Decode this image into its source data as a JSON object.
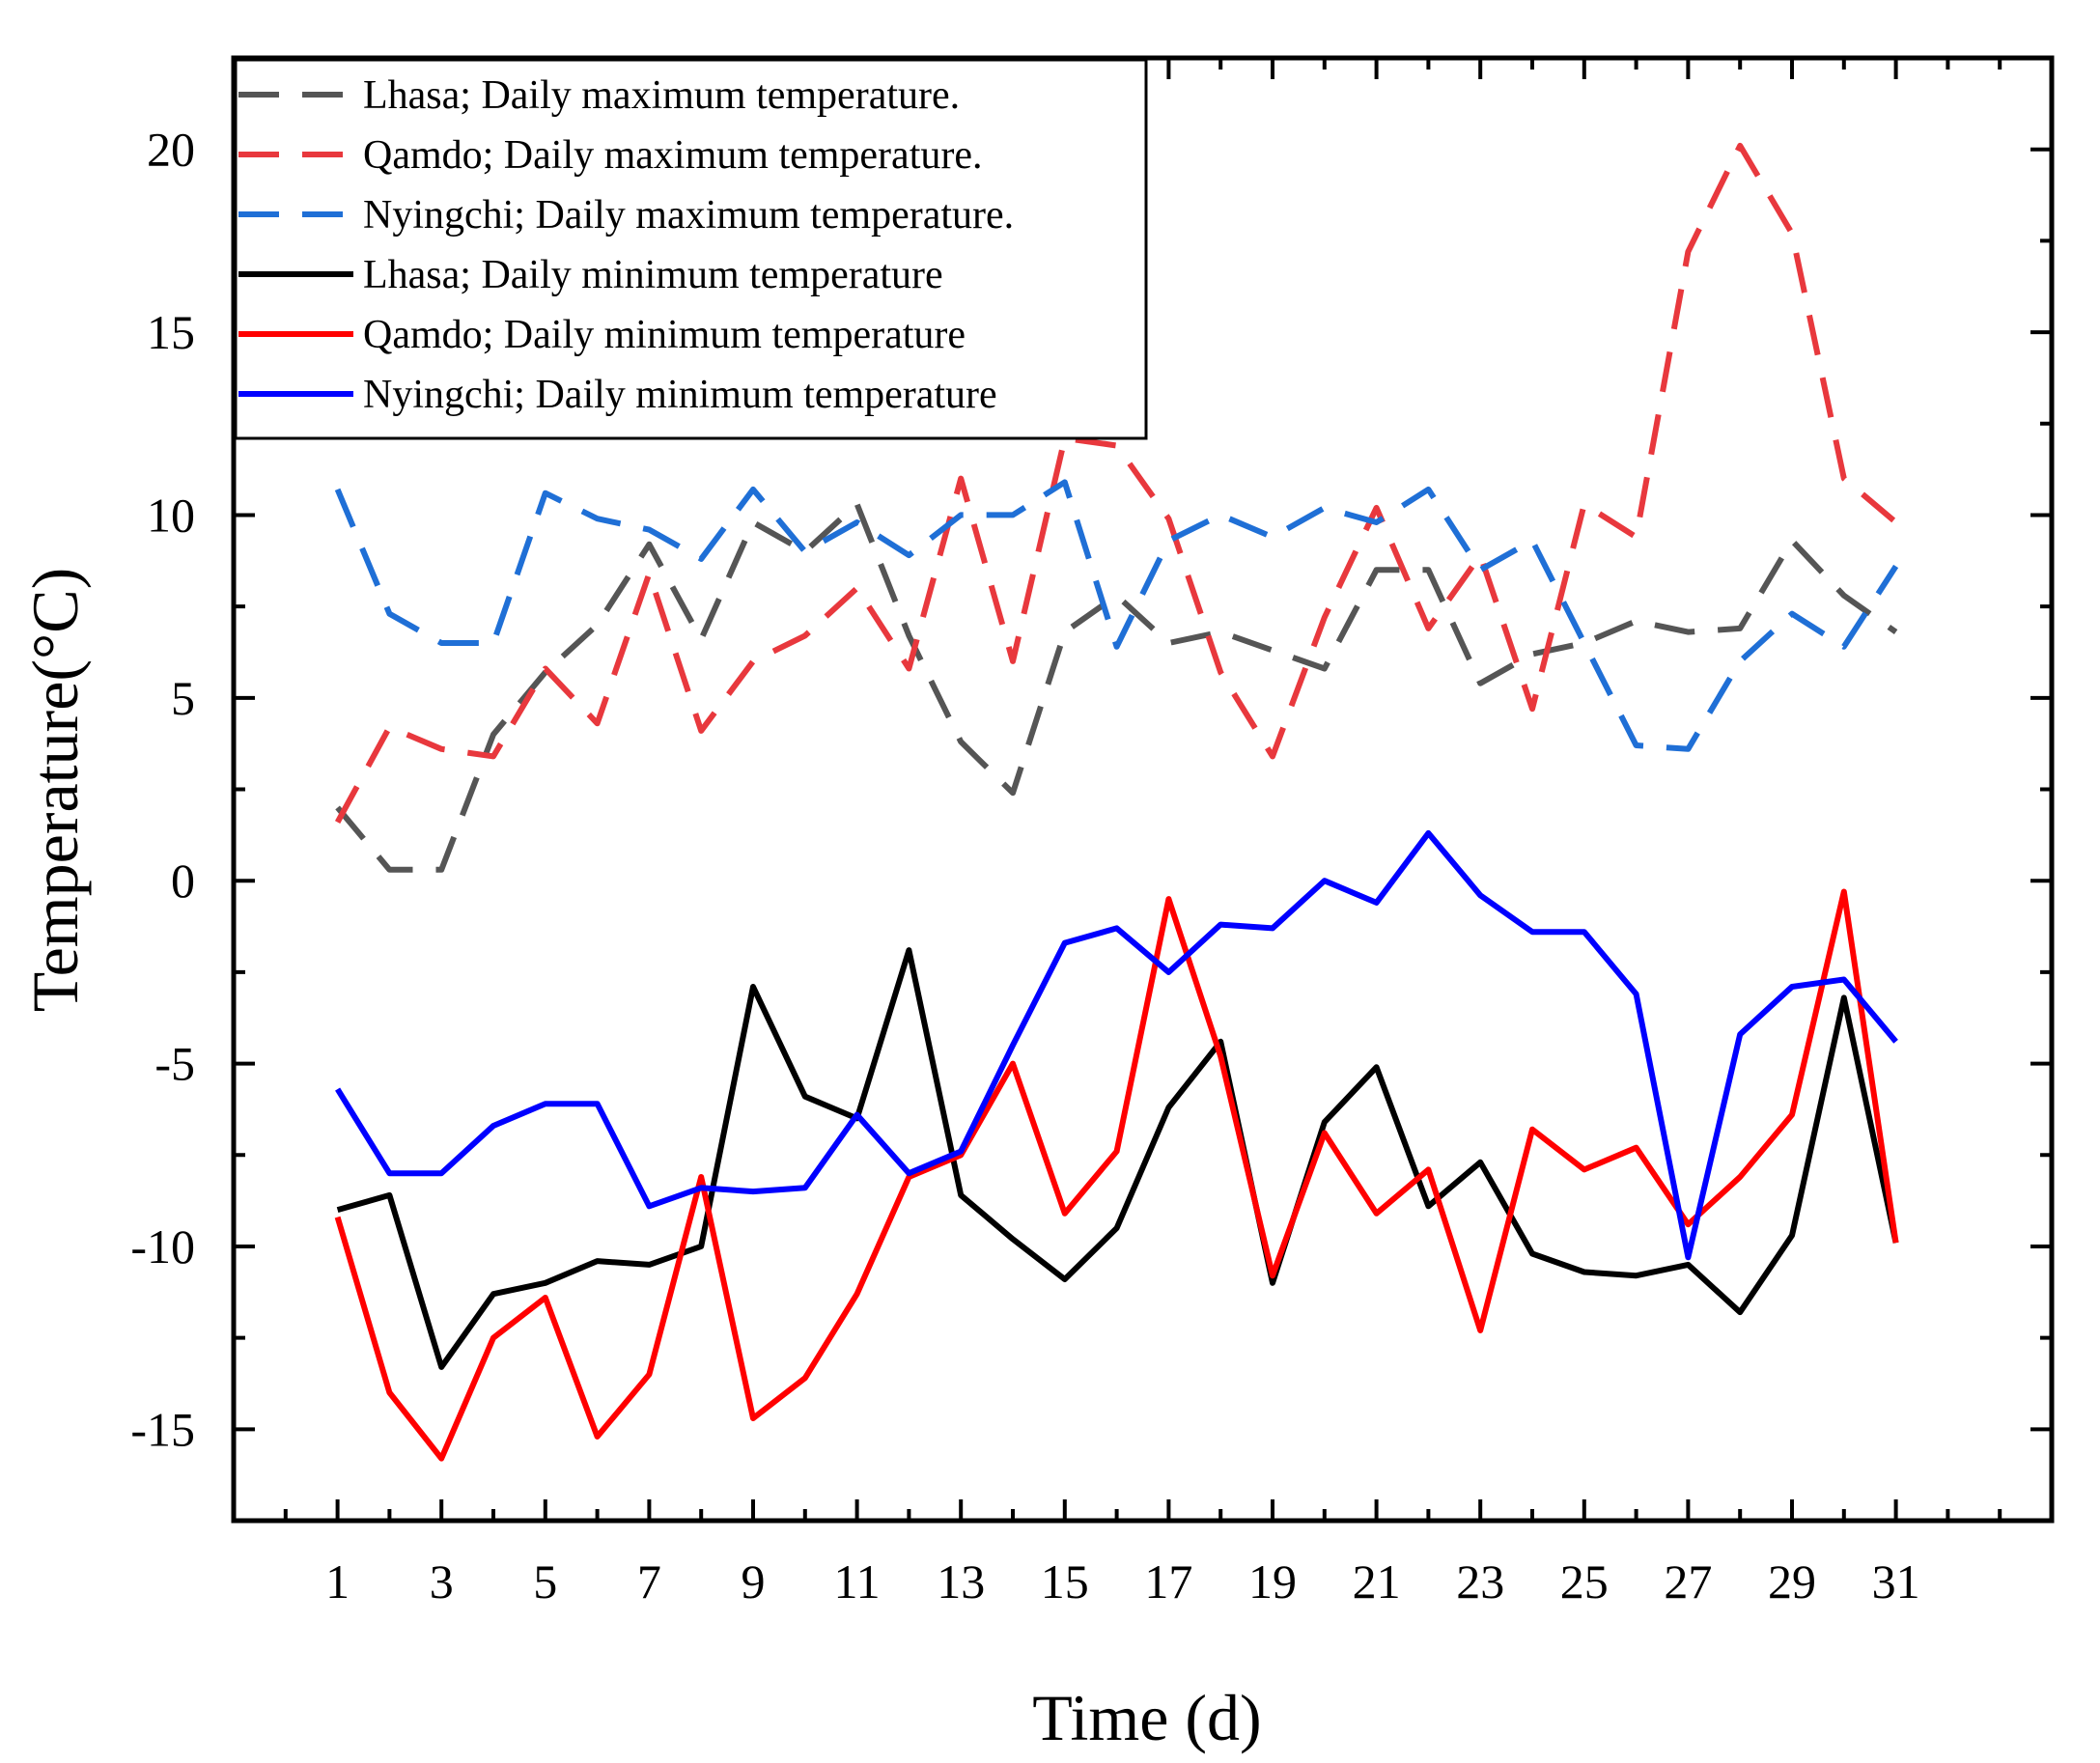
{
  "chart_data": {
    "type": "line",
    "title": "",
    "xlabel": "Time (d)",
    "ylabel": "Temperature(°C)",
    "xlim": [
      -1,
      34
    ],
    "ylim": [
      -17.5,
      22.5
    ],
    "xticks": [
      1,
      3,
      5,
      7,
      9,
      11,
      13,
      15,
      17,
      19,
      21,
      23,
      25,
      27,
      29,
      31
    ],
    "xticks_minor": [
      0,
      2,
      4,
      6,
      8,
      10,
      12,
      14,
      16,
      18,
      20,
      22,
      24,
      26,
      28,
      30,
      32,
      33
    ],
    "yticks": [
      20,
      15,
      10,
      5,
      0,
      -5,
      -10,
      -15
    ],
    "yticks_minor": [
      -17.5,
      -12.5,
      -7.5,
      -2.5,
      2.5,
      7.5,
      12.5,
      17.5,
      22.5
    ],
    "ytick_labels": [
      "20",
      "15",
      "10",
      "5",
      "0",
      "-5",
      "-10",
      "-15"
    ],
    "grid": false,
    "legend_position": "top-left",
    "x": [
      1,
      2,
      3,
      4,
      5,
      6,
      7,
      8,
      9,
      10,
      11,
      12,
      13,
      14,
      15,
      16,
      17,
      18,
      19,
      20,
      21,
      22,
      23,
      24,
      25,
      26,
      27,
      28,
      29,
      30,
      31
    ],
    "series": [
      {
        "name": "Lhasa; Daily maximum temperature.",
        "color": "#555555",
        "dash": true,
        "values": [
          2,
          0.3,
          0.3,
          4,
          5.7,
          7,
          9.2,
          6.6,
          9.8,
          9,
          10.3,
          6.7,
          3.8,
          2.4,
          6.8,
          7.8,
          6.5,
          6.8,
          6.3,
          5.8,
          8.5,
          8.5,
          5.4,
          6.2,
          6.5,
          7.1,
          6.8,
          6.9,
          9.3,
          7.8,
          6.8
        ]
      },
      {
        "name": "Qamdo; Daily maximum temperature.",
        "color": "#e8383d",
        "dash": true,
        "values": [
          1.6,
          4.2,
          3.6,
          3.4,
          5.8,
          4.3,
          8.4,
          4.1,
          6,
          6.7,
          8,
          5.8,
          11,
          6,
          12.1,
          11.9,
          9.9,
          5.7,
          3.4,
          7.2,
          10.2,
          6.9,
          8.9,
          4.7,
          10.3,
          9.4,
          17.2,
          20.1,
          17.7,
          11,
          9.8
        ]
      },
      {
        "name": "Nyingchi; Daily maximum temperature.",
        "color": "#1f6fd6",
        "dash": true,
        "values": [
          10.7,
          7.3,
          6.5,
          6.5,
          10.6,
          9.9,
          9.6,
          8.8,
          10.7,
          9,
          9.8,
          8.9,
          10,
          10,
          10.9,
          6.4,
          9.3,
          10,
          9.4,
          10.2,
          9.8,
          10.7,
          8.5,
          9.3,
          6.5,
          3.7,
          3.6,
          6,
          7.3,
          6.4,
          8.6
        ]
      },
      {
        "name": "Lhasa; Daily minimum temperature",
        "color": "#000000",
        "dash": false,
        "values": [
          -9,
          -8.6,
          -13.3,
          -11.3,
          -11,
          -10.4,
          -10.5,
          -10,
          -2.9,
          -5.9,
          -6.5,
          -1.9,
          -8.6,
          -9.8,
          -10.9,
          -9.5,
          -6.2,
          -4.4,
          -11,
          -6.6,
          -5.1,
          -8.9,
          -7.7,
          -10.2,
          -10.7,
          -10.8,
          -10.5,
          -11.8,
          -9.7,
          -3.2,
          -9.9
        ]
      },
      {
        "name": "Qamdo; Daily minimum temperature",
        "color": "#ff0000",
        "dash": false,
        "values": [
          -9.2,
          -14,
          -15.8,
          -12.5,
          -11.4,
          -15.2,
          -13.5,
          -8.1,
          -14.7,
          -13.6,
          -11.3,
          -8.1,
          -7.5,
          -5,
          -9.1,
          -7.4,
          -0.5,
          -4.8,
          -10.8,
          -6.9,
          -9.1,
          -7.9,
          -12.3,
          -6.8,
          -7.9,
          -7.3,
          -9.4,
          -8.1,
          -6.4,
          -0.3,
          -9.9
        ]
      },
      {
        "name": "Nyingchi; Daily minimum temperature",
        "color": "#0000ff",
        "dash": false,
        "values": [
          -5.7,
          -8,
          -8,
          -6.7,
          -6.1,
          -6.1,
          -8.9,
          -8.4,
          -8.5,
          -8.4,
          -6.4,
          -8,
          -7.4,
          -4.5,
          -1.7,
          -1.3,
          -2.5,
          -1.2,
          -1.3,
          0,
          -0.6,
          1.3,
          -0.4,
          -1.4,
          -1.4,
          -3.1,
          -10.3,
          -4.2,
          -2.9,
          -2.7,
          -4.4
        ]
      }
    ]
  }
}
